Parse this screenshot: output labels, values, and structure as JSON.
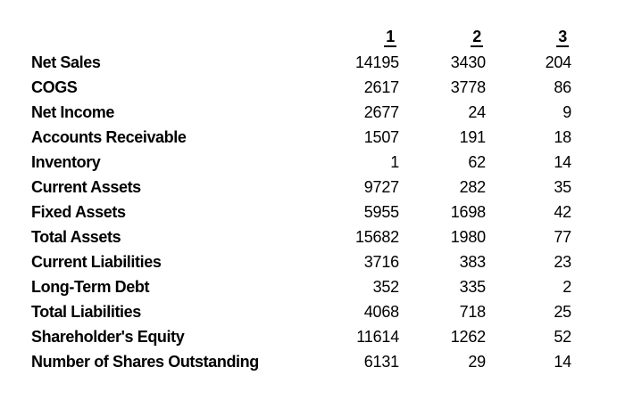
{
  "page": {
    "background_color": "#ffffff",
    "text_color": "#000000"
  },
  "table": {
    "column_headers": [
      "1",
      "2",
      "3"
    ],
    "rows": [
      {
        "label": "Net Sales",
        "values": [
          "14195",
          "3430",
          "204"
        ]
      },
      {
        "label": "COGS",
        "values": [
          "2617",
          "3778",
          "86"
        ]
      },
      {
        "label": "Net Income",
        "values": [
          "2677",
          "24",
          "9"
        ]
      },
      {
        "label": "Accounts Receivable",
        "values": [
          "1507",
          "191",
          "18"
        ]
      },
      {
        "label": "Inventory",
        "values": [
          "1",
          "62",
          "14"
        ]
      },
      {
        "label": "Current Assets",
        "values": [
          "9727",
          "282",
          "35"
        ]
      },
      {
        "label": "Fixed Assets",
        "values": [
          "5955",
          "1698",
          "42"
        ]
      },
      {
        "label": "Total Assets",
        "values": [
          "15682",
          "1980",
          "77"
        ]
      },
      {
        "label": "Current Liabilities",
        "values": [
          "3716",
          "383",
          "23"
        ]
      },
      {
        "label": "Long-Term Debt",
        "values": [
          "352",
          "335",
          "2"
        ]
      },
      {
        "label": "Total Liabilities",
        "values": [
          "4068",
          "718",
          "25"
        ]
      },
      {
        "label": "Shareholder's Equity",
        "values": [
          "11614",
          "1262",
          "52"
        ]
      },
      {
        "label": "Number of Shares Outstanding",
        "values": [
          "6131",
          "29",
          "14"
        ]
      }
    ]
  },
  "chart_data": {
    "type": "table",
    "categories": [
      "1",
      "2",
      "3"
    ],
    "series": [
      {
        "name": "Net Sales",
        "values": [
          14195,
          3430,
          204
        ]
      },
      {
        "name": "COGS",
        "values": [
          2617,
          3778,
          86
        ]
      },
      {
        "name": "Net Income",
        "values": [
          2677,
          24,
          9
        ]
      },
      {
        "name": "Accounts Receivable",
        "values": [
          1507,
          191,
          18
        ]
      },
      {
        "name": "Inventory",
        "values": [
          1,
          62,
          14
        ]
      },
      {
        "name": "Current Assets",
        "values": [
          9727,
          282,
          35
        ]
      },
      {
        "name": "Fixed Assets",
        "values": [
          5955,
          1698,
          42
        ]
      },
      {
        "name": "Total Assets",
        "values": [
          15682,
          1980,
          77
        ]
      },
      {
        "name": "Current Liabilities",
        "values": [
          3716,
          383,
          23
        ]
      },
      {
        "name": "Long-Term Debt",
        "values": [
          352,
          335,
          2
        ]
      },
      {
        "name": "Total Liabilities",
        "values": [
          4068,
          718,
          25
        ]
      },
      {
        "name": "Shareholder's Equity",
        "values": [
          11614,
          1262,
          52
        ]
      },
      {
        "name": "Number of Shares Outstanding",
        "values": [
          6131,
          29,
          14
        ]
      }
    ]
  }
}
